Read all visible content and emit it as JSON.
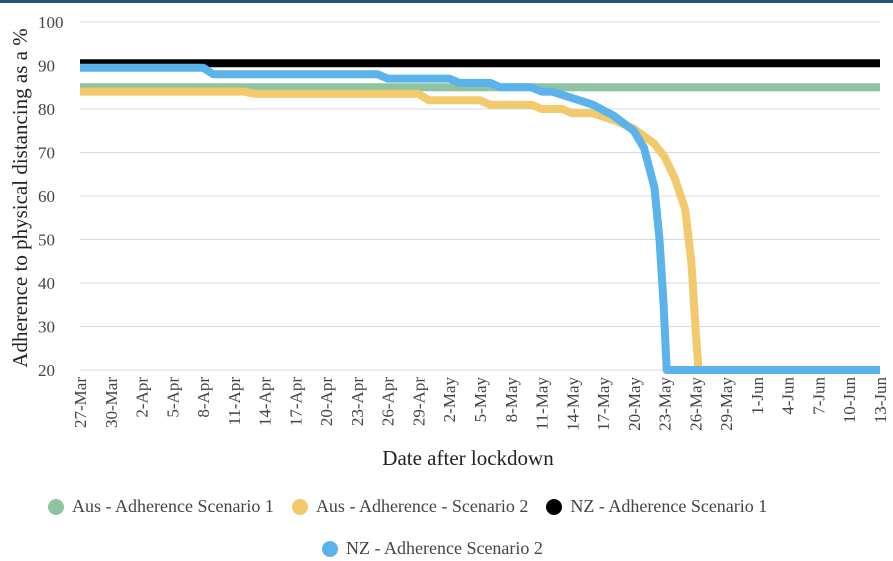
{
  "chart_data": {
    "type": "line",
    "title": "",
    "xlabel": "Date after lockdown",
    "ylabel": "Adherence to physical distancing as a %",
    "ylim": [
      20,
      100
    ],
    "yticks": [
      20,
      30,
      40,
      50,
      60,
      70,
      80,
      90,
      100
    ],
    "xlim": [
      0,
      78
    ],
    "xticks": [
      {
        "x": 0,
        "label": "27-Mar"
      },
      {
        "x": 3,
        "label": "30-Mar"
      },
      {
        "x": 6,
        "label": "2-Apr"
      },
      {
        "x": 9,
        "label": "5-Apr"
      },
      {
        "x": 12,
        "label": "8-Apr"
      },
      {
        "x": 15,
        "label": "11-Apr"
      },
      {
        "x": 18,
        "label": "14-Apr"
      },
      {
        "x": 21,
        "label": "17-Apr"
      },
      {
        "x": 24,
        "label": "20-Apr"
      },
      {
        "x": 27,
        "label": "23-Apr"
      },
      {
        "x": 30,
        "label": "26-Apr"
      },
      {
        "x": 33,
        "label": "29-Apr"
      },
      {
        "x": 36,
        "label": "2-May"
      },
      {
        "x": 39,
        "label": "5-May"
      },
      {
        "x": 42,
        "label": "8-May"
      },
      {
        "x": 45,
        "label": "11-May"
      },
      {
        "x": 48,
        "label": "14-May"
      },
      {
        "x": 51,
        "label": "17-May"
      },
      {
        "x": 54,
        "label": "20-May"
      },
      {
        "x": 57,
        "label": "23-May"
      },
      {
        "x": 60,
        "label": "26-May"
      },
      {
        "x": 63,
        "label": "29-May"
      },
      {
        "x": 66,
        "label": "1-Jun"
      },
      {
        "x": 69,
        "label": "4-Jun"
      },
      {
        "x": 72,
        "label": "7-Jun"
      },
      {
        "x": 75,
        "label": "10-Jun"
      },
      {
        "x": 78,
        "label": "13-Jun"
      }
    ],
    "grid": true,
    "legend_position": "bottom",
    "series": [
      {
        "name": "Aus - Adherence Scenario 1",
        "color": "#8fc4a2",
        "points": [
          [
            0,
            85
          ],
          [
            78,
            85
          ]
        ]
      },
      {
        "name": "Aus - Adherence - Scenario 2",
        "color": "#f2c96b",
        "points": [
          [
            0,
            84
          ],
          [
            16,
            84
          ],
          [
            17,
            83.5
          ],
          [
            33,
            83.5
          ],
          [
            34,
            82
          ],
          [
            39,
            82
          ],
          [
            40,
            81
          ],
          [
            44,
            81
          ],
          [
            45,
            80
          ],
          [
            47,
            80
          ],
          [
            48,
            79
          ],
          [
            50,
            79
          ],
          [
            52,
            77.5
          ],
          [
            54,
            75.5
          ],
          [
            56,
            72
          ],
          [
            57,
            69
          ],
          [
            58,
            64
          ],
          [
            59,
            57
          ],
          [
            59.6,
            45
          ],
          [
            60,
            30
          ],
          [
            60.3,
            20
          ],
          [
            61,
            20
          ],
          [
            78,
            20
          ]
        ]
      },
      {
        "name": "NZ - Adherence Scenario 1",
        "color": "#000000",
        "points": [
          [
            0,
            90.5
          ],
          [
            78,
            90.5
          ]
        ]
      },
      {
        "name": "NZ - Adherence Scenario 2",
        "color": "#5ab3ea",
        "points": [
          [
            0,
            89.5
          ],
          [
            12,
            89.5
          ],
          [
            13,
            88
          ],
          [
            29,
            88
          ],
          [
            30,
            87
          ],
          [
            36,
            87
          ],
          [
            37,
            86
          ],
          [
            40,
            86
          ],
          [
            41,
            85
          ],
          [
            44,
            85
          ],
          [
            45,
            84
          ],
          [
            46,
            84
          ],
          [
            48,
            82.5
          ],
          [
            50,
            81
          ],
          [
            52,
            78.5
          ],
          [
            54,
            75
          ],
          [
            55,
            71
          ],
          [
            56,
            62
          ],
          [
            56.5,
            50
          ],
          [
            56.9,
            35
          ],
          [
            57.2,
            20
          ],
          [
            58,
            20
          ],
          [
            78,
            20
          ]
        ]
      }
    ]
  }
}
